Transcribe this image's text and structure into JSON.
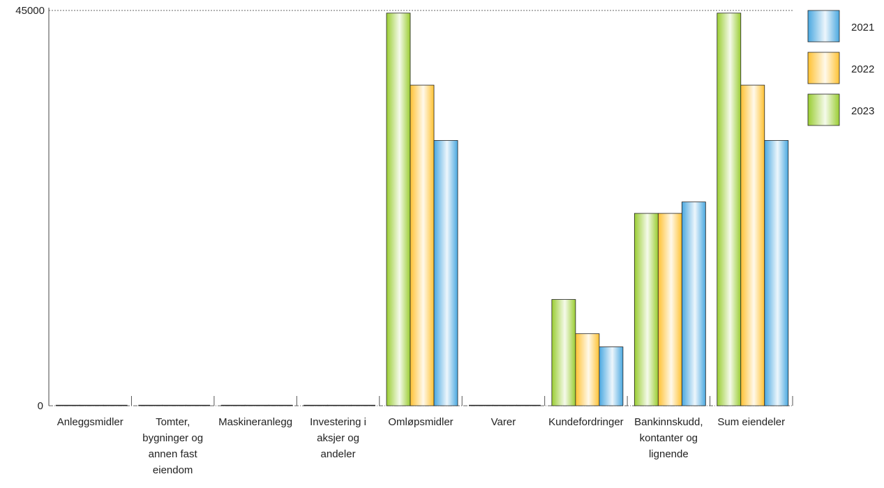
{
  "chart_data": {
    "type": "bar",
    "title": "",
    "xlabel": "",
    "ylabel": "",
    "ylim": [
      0,
      45000
    ],
    "yticks": [
      "0",
      "45000"
    ],
    "grid": "top line only (dotted)",
    "legend_position": "right",
    "categories": [
      [
        "Anleggsmidler"
      ],
      [
        "Tomter,",
        "bygninger og",
        "annen fast",
        "eiendom"
      ],
      [
        "Maskineranlegg"
      ],
      [
        "Investering i",
        "aksjer og",
        "andeler"
      ],
      [
        "Omløpsmidler"
      ],
      [
        "Varer"
      ],
      [
        "Kundefordringer"
      ],
      [
        "Bankinnskudd,",
        "kontanter og",
        "lignende"
      ],
      [
        "Sum eiendeler"
      ]
    ],
    "series": [
      {
        "name": "2023",
        "color": "#9acd32",
        "values": [
          0,
          0,
          0,
          0,
          44700,
          0,
          12100,
          21900,
          44700
        ]
      },
      {
        "name": "2022",
        "color": "#ffc233",
        "values": [
          0,
          0,
          0,
          0,
          36500,
          0,
          8200,
          21900,
          36500
        ]
      },
      {
        "name": "2021",
        "color": "#4aa8e0",
        "values": [
          0,
          0,
          0,
          0,
          30200,
          0,
          6700,
          23200,
          30200
        ]
      }
    ],
    "legend_order": [
      "2021",
      "2022",
      "2023"
    ]
  }
}
